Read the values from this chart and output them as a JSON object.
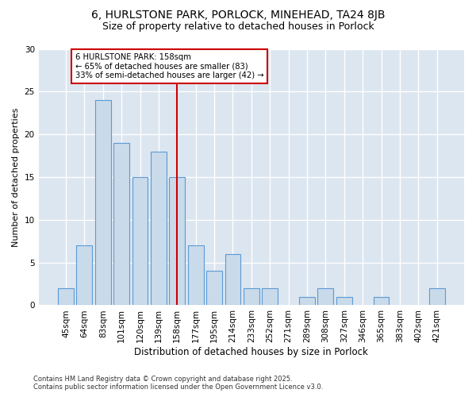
{
  "title1": "6, HURLSTONE PARK, PORLOCK, MINEHEAD, TA24 8JB",
  "title2": "Size of property relative to detached houses in Porlock",
  "xlabel": "Distribution of detached houses by size in Porlock",
  "ylabel": "Number of detached properties",
  "categories": [
    "45sqm",
    "64sqm",
    "83sqm",
    "101sqm",
    "120sqm",
    "139sqm",
    "158sqm",
    "177sqm",
    "195sqm",
    "214sqm",
    "233sqm",
    "252sqm",
    "271sqm",
    "289sqm",
    "308sqm",
    "327sqm",
    "346sqm",
    "365sqm",
    "383sqm",
    "402sqm",
    "421sqm"
  ],
  "values": [
    2,
    7,
    24,
    19,
    15,
    18,
    15,
    7,
    4,
    6,
    2,
    2,
    0,
    1,
    2,
    1,
    0,
    1,
    0,
    0,
    2
  ],
  "bar_color": "#c9daea",
  "bar_edge_color": "#5b9bd5",
  "vline_x": 6,
  "vline_color": "#cc0000",
  "annotation_text": "6 HURLSTONE PARK: 158sqm\n← 65% of detached houses are smaller (83)\n33% of semi-detached houses are larger (42) →",
  "annotation_box_color": "#ffffff",
  "annotation_box_edge_color": "#cc0000",
  "ylim": [
    0,
    30
  ],
  "yticks": [
    0,
    5,
    10,
    15,
    20,
    25,
    30
  ],
  "footer": "Contains HM Land Registry data © Crown copyright and database right 2025.\nContains public sector information licensed under the Open Government Licence v3.0.",
  "fig_bg_color": "#ffffff",
  "plot_bg_color": "#dce6f0",
  "grid_color": "#ffffff",
  "title_fontsize": 10,
  "subtitle_fontsize": 9,
  "bar_width": 0.85,
  "footer_fontsize": 6.0,
  "xlabel_fontsize": 8.5,
  "ylabel_fontsize": 8.0,
  "tick_fontsize": 7.5
}
